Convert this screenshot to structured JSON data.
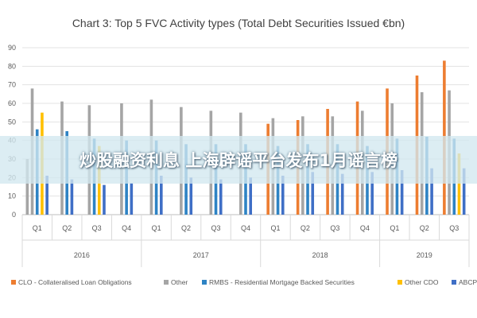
{
  "chart_data": {
    "type": "bar",
    "title": "Chart 3: Top 5 FVC Activity types (Total Debt Securities Issued €bn)",
    "ylim": [
      0,
      90
    ],
    "yticks": [
      0,
      10,
      20,
      30,
      40,
      50,
      60,
      70,
      80,
      90
    ],
    "grid": true,
    "legend_position": "bottom",
    "categories": [
      "Q1",
      "Q2",
      "Q3",
      "Q4",
      "Q1",
      "Q2",
      "Q3",
      "Q4",
      "Q1",
      "Q2",
      "Q3",
      "Q4",
      "Q1",
      "Q2",
      "Q3"
    ],
    "year_groups": [
      {
        "label": "2016",
        "count": 4
      },
      {
        "label": "2017",
        "count": 4
      },
      {
        "label": "2018",
        "count": 4
      },
      {
        "label": "2019",
        "count": 3
      }
    ],
    "series": [
      {
        "name": "CLO - Collateralised Loan Obligations",
        "color": "#ED7D31",
        "values": [
          null,
          null,
          null,
          null,
          null,
          null,
          null,
          null,
          49,
          51,
          57,
          61,
          68,
          75,
          83
        ]
      },
      {
        "name": "Other",
        "color": "#A5A5A5",
        "values": [
          68,
          61,
          59,
          60,
          62,
          58,
          56,
          55,
          52,
          53,
          53,
          56,
          60,
          66,
          67
        ]
      },
      {
        "name": "RMBS - Residential Mortgage Backed Securities",
        "color": "#2E83C4",
        "values": [
          46,
          45,
          41,
          40,
          40,
          38,
          38,
          38,
          37,
          38,
          38,
          37,
          41,
          42,
          41
        ]
      },
      {
        "name": "Other CDO",
        "color": "#FFC000",
        "values": [
          55,
          null,
          37,
          null,
          null,
          null,
          null,
          null,
          null,
          null,
          null,
          null,
          null,
          null,
          33
        ]
      },
      {
        "name": "ABCP",
        "color": "#3F6FC6",
        "values": [
          21,
          19,
          16,
          17,
          21,
          20,
          19,
          20,
          21,
          23,
          22,
          23,
          24,
          25,
          25
        ]
      }
    ],
    "baseline_series": {
      "name": "Other",
      "color": "#A5A5A5",
      "values": [
        30,
        null,
        null,
        null,
        null,
        null,
        null,
        null,
        null,
        null,
        null,
        null,
        null,
        null,
        null
      ]
    }
  },
  "overlay": {
    "text": "炒股融资利息 上海辟谣平台发布1月谣言榜"
  }
}
